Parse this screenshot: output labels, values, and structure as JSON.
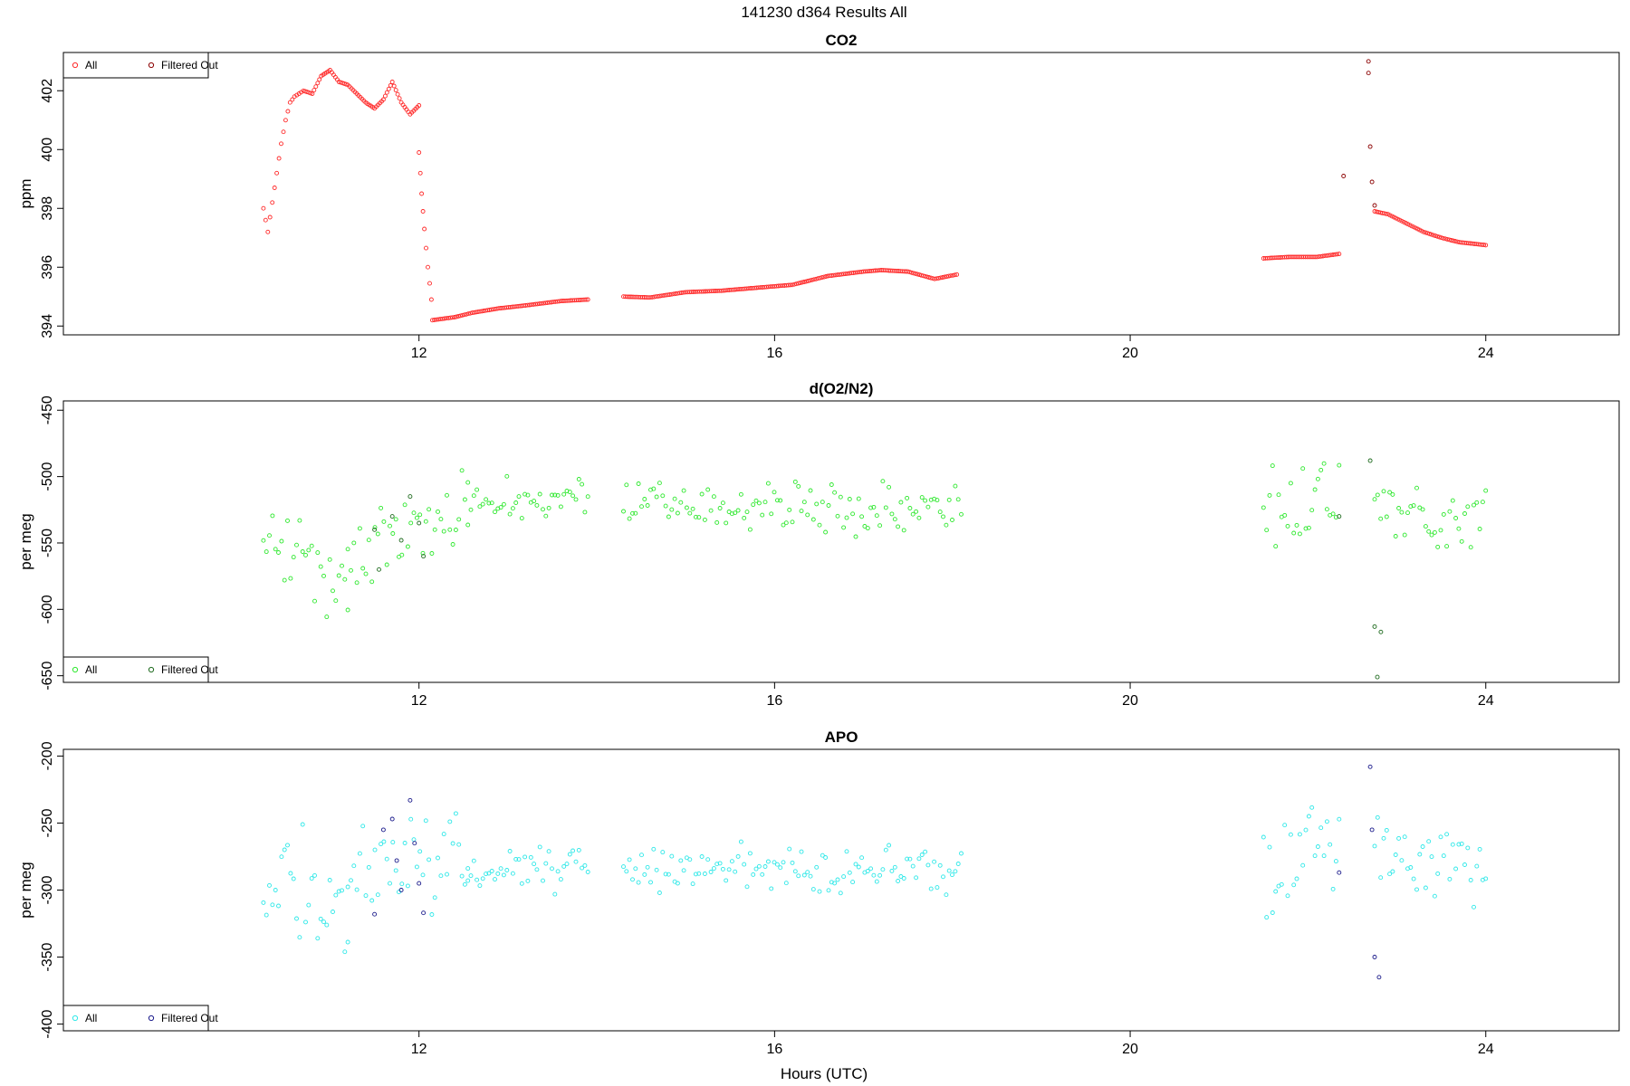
{
  "figure": {
    "title": "141230   d364   Results All",
    "xlabel": "Hours (UTC)"
  },
  "chart_data": [
    {
      "type": "scatter",
      "title": "CO2",
      "ylabel": "ppm",
      "xlim": [
        8,
        25.5
      ],
      "ylim": [
        393.7,
        403.3
      ],
      "xticks": [
        12,
        16,
        20,
        24
      ],
      "yticks": [
        394,
        396,
        398,
        400,
        402
      ],
      "legend": {
        "position": "top-left",
        "items": [
          "All",
          "Filtered Out"
        ]
      },
      "colors": {
        "all": "#ff2a2a",
        "filtered": "#8b0000"
      },
      "series": [
        {
          "name": "All",
          "segments": [
            {
              "x": [
                10.25,
                10.3,
                10.35,
                10.4,
                10.45,
                10.5,
                10.55,
                10.6,
                10.65,
                10.7,
                10.8,
                10.9,
                11.0,
                11.1,
                11.2,
                11.3,
                11.4,
                11.5,
                11.6,
                11.7,
                11.8,
                11.9,
                12.0
              ],
              "y": [
                398.0,
                397.2,
                398.2,
                399.2,
                400.2,
                401.0,
                401.6,
                401.8,
                401.9,
                402.0,
                401.9,
                402.5,
                402.7,
                402.3,
                402.2,
                401.9,
                401.6,
                401.4,
                401.7,
                402.3,
                401.6,
                401.2,
                401.5
              ]
            },
            {
              "x": [
                12.0,
                12.03,
                12.06,
                12.1,
                12.14
              ],
              "y": [
                399.9,
                398.5,
                397.3,
                396.0,
                394.9
              ]
            },
            {
              "x": [
                12.15,
                12.4,
                12.6,
                12.9,
                13.2,
                13.6,
                13.9
              ],
              "y": [
                394.2,
                394.3,
                394.45,
                394.6,
                394.7,
                394.85,
                394.9
              ]
            },
            {
              "x": [
                14.3,
                14.6,
                15.0,
                15.4,
                15.8,
                16.2,
                16.6,
                17.0,
                17.2,
                17.5,
                17.8,
                18.05
              ],
              "y": [
                395.0,
                394.97,
                395.15,
                395.2,
                395.3,
                395.4,
                395.7,
                395.85,
                395.9,
                395.85,
                395.6,
                395.75
              ]
            },
            {
              "x": [
                21.5,
                21.8,
                22.1,
                22.35
              ],
              "y": [
                396.3,
                396.35,
                396.35,
                396.45
              ]
            },
            {
              "x": [
                22.75,
                22.9,
                23.1,
                23.3,
                23.5,
                23.7,
                23.85,
                24.0
              ],
              "y": [
                397.9,
                397.8,
                397.5,
                397.2,
                397.0,
                396.85,
                396.8,
                396.75
              ]
            }
          ]
        },
        {
          "name": "Filtered Out",
          "points": {
            "x": [
              22.68,
              22.68,
              22.7,
              22.72,
              22.75,
              22.4
            ],
            "y": [
              403.0,
              402.6,
              400.1,
              398.9,
              398.1,
              399.1
            ]
          }
        }
      ]
    },
    {
      "type": "scatter",
      "title": "d(O2/N2)",
      "ylabel": "per meg",
      "xlim": [
        8,
        25.5
      ],
      "ylim": [
        -655,
        -443
      ],
      "xticks": [
        12,
        16,
        20,
        24
      ],
      "yticks": [
        -650,
        -600,
        -550,
        -500,
        -450
      ],
      "legend": {
        "position": "bottom-left",
        "items": [
          "All",
          "Filtered Out"
        ]
      },
      "colors": {
        "all": "#2ee82e",
        "filtered": "#1f6b1f"
      },
      "series": [
        {
          "name": "All",
          "blocks": [
            {
              "x_range": [
                10.25,
                11.2
              ],
              "mean": [
                -545,
                -575
              ],
              "spread": 25
            },
            {
              "x_range": [
                11.2,
                12.55
              ],
              "mean": [
                -560,
                -520
              ],
              "spread": 22
            },
            {
              "x_range": [
                12.55,
                13.9
              ],
              "mean": [
                -520,
                -520
              ],
              "spread": 13
            },
            {
              "x_range": [
                14.3,
                18.1
              ],
              "mean": [
                -520,
                -525
              ],
              "spread": 13
            },
            {
              "x_range": [
                21.5,
                22.35
              ],
              "mean": [
                -530,
                -520
              ],
              "spread": 28
            },
            {
              "x_range": [
                22.75,
                24.0
              ],
              "mean": [
                -525,
                -530
              ],
              "spread": 18
            }
          ]
        },
        {
          "name": "Filtered Out",
          "points": {
            "x": [
              11.5,
              11.55,
              11.7,
              11.8,
              11.9,
              12.0,
              12.05,
              22.35,
              22.7,
              22.75,
              22.78,
              22.82
            ],
            "y": [
              -540,
              -570,
              -530,
              -548,
              -515,
              -535,
              -560,
              -530,
              -488,
              -613,
              -651,
              -617
            ]
          }
        }
      ]
    },
    {
      "type": "scatter",
      "title": "APO",
      "ylabel": "per meg",
      "xlim": [
        8,
        25.5
      ],
      "ylim": [
        -405,
        -195
      ],
      "xticks": [
        12,
        16,
        20,
        24
      ],
      "yticks": [
        -400,
        -350,
        -300,
        -250,
        -200
      ],
      "legend": {
        "position": "bottom-left",
        "items": [
          "All",
          "Filtered Out"
        ]
      },
      "colors": {
        "all": "#2ee8e8",
        "filtered": "#1a1a8b"
      },
      "series": [
        {
          "name": "All",
          "blocks": [
            {
              "x_range": [
                10.25,
                11.2
              ],
              "mean": [
                -295,
                -310
              ],
              "spread": 30
            },
            {
              "x_range": [
                11.2,
                12.55
              ],
              "mean": [
                -285,
                -280
              ],
              "spread": 28
            },
            {
              "x_range": [
                12.55,
                13.9
              ],
              "mean": [
                -285,
                -283
              ],
              "spread": 12
            },
            {
              "x_range": [
                14.3,
                18.1
              ],
              "mean": [
                -282,
                -285
              ],
              "spread": 12
            },
            {
              "x_range": [
                21.5,
                22.35
              ],
              "mean": [
                -280,
                -270
              ],
              "spread": 30
            },
            {
              "x_range": [
                22.75,
                24.0
              ],
              "mean": [
                -270,
                -285
              ],
              "spread": 20
            }
          ]
        },
        {
          "name": "Filtered Out",
          "points": {
            "x": [
              11.5,
              11.6,
              11.7,
              11.75,
              11.8,
              11.9,
              11.95,
              12.0,
              12.05,
              22.35,
              22.7,
              22.72,
              22.75,
              22.8
            ],
            "y": [
              -318,
              -255,
              -247,
              -278,
              -300,
              -233,
              -265,
              -295,
              -317,
              -287,
              -208,
              -255,
              -350,
              -365
            ]
          }
        }
      ]
    }
  ]
}
